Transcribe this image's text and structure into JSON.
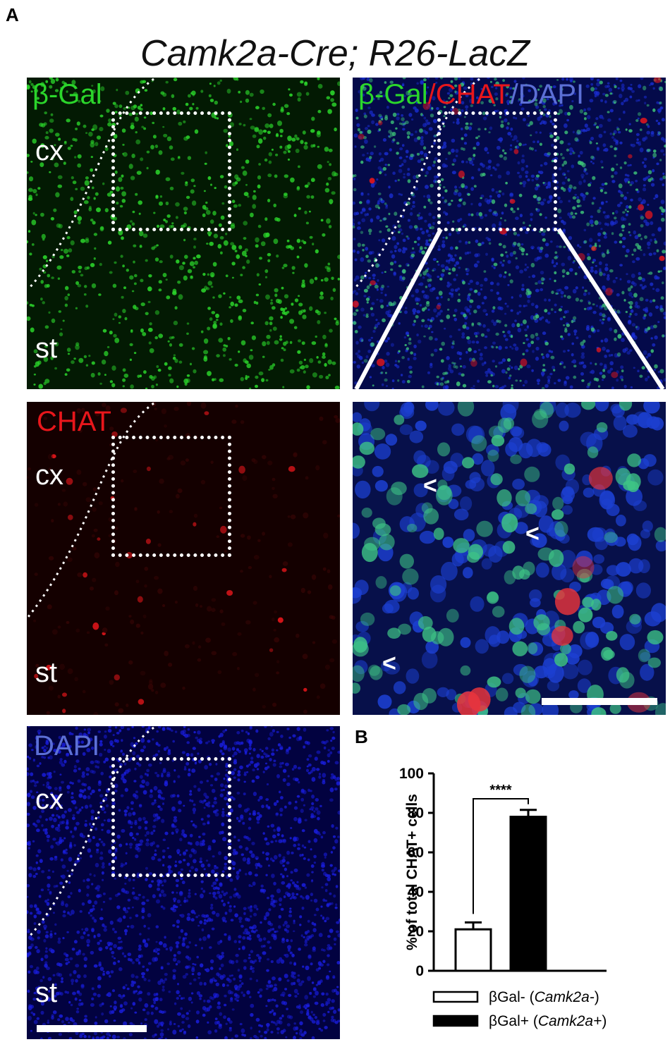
{
  "panel_letters": {
    "a": "A",
    "b": "B"
  },
  "figure_title": "Camk2a-Cre; R26-LacZ",
  "panels": {
    "bgal": {
      "label": "β-Gal",
      "region_top": "cx",
      "region_bottom": "st"
    },
    "merge": {
      "label_part1": "β-Gal",
      "label_sep1": "/",
      "label_part2": "CHAT",
      "label_sep2": "/",
      "label_part3": "DAPI"
    },
    "chat": {
      "label": "CHAT",
      "region_top": "cx",
      "region_bottom": "st"
    },
    "dapi": {
      "label": "DAPI",
      "region_top": "cx",
      "region_bottom": "st"
    },
    "zoom": {
      "arrow_glyph": "<"
    }
  },
  "colors": {
    "green": "#2bd62b",
    "red": "#e8161b",
    "blue_label": "#5c6fd6",
    "bgal_bg": "#031a03",
    "chat_bg": "#140000",
    "dapi_bg": "#020240",
    "merge_bg": "#040a4a"
  },
  "chart_data": {
    "type": "bar",
    "categories": [
      "βGal- (Camk2a-)",
      "βGal+ (Camk2a+)"
    ],
    "values": [
      21,
      78
    ],
    "errors": [
      3.5,
      3.5
    ],
    "ylabel": "% of total CHAT+ cells",
    "ylim": [
      0,
      100
    ],
    "yticks": [
      0,
      20,
      40,
      60,
      80,
      100
    ],
    "significance": "****",
    "fills": [
      "#ffffff",
      "#000000"
    ],
    "legend": [
      {
        "prefix": "βGal- (",
        "italic": "Camk2a-",
        "suffix": ")"
      },
      {
        "prefix": "βGal+ (",
        "italic": "Camk2a+",
        "suffix": ")"
      }
    ]
  }
}
